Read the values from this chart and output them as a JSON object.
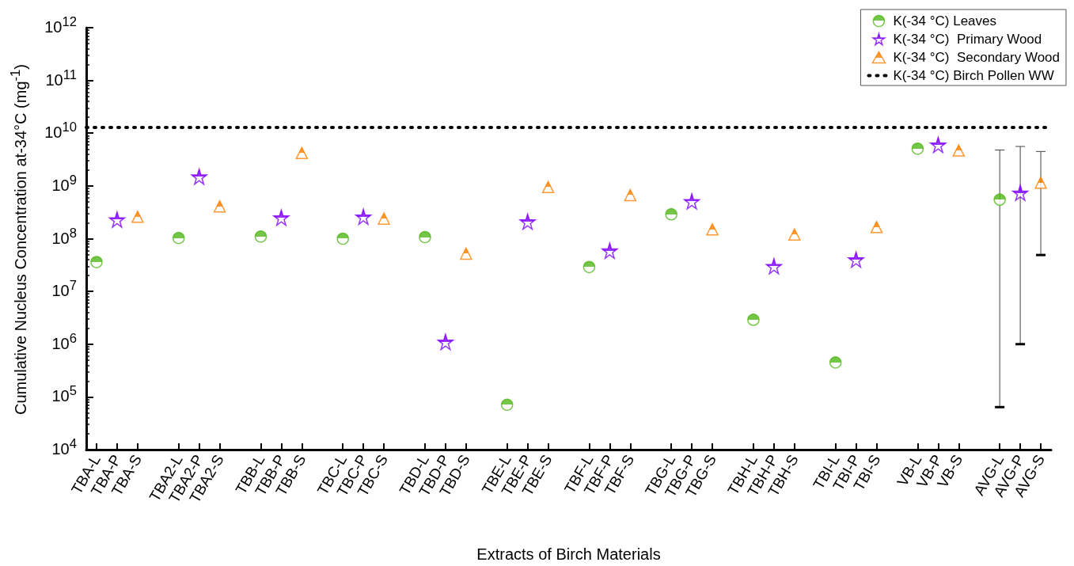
{
  "chart_data": {
    "type": "scatter",
    "xlabel": "Extracts of Birch Materials",
    "ylabel": "Cumulative Nucleus Concentration at-34°C (mg$^{-1}$)",
    "categories": [
      "TBA-L",
      "TBA-P",
      "TBA-S",
      null,
      "TBA2-L",
      "TBA2-P",
      "TBA2-S",
      null,
      "TBB-L",
      "TBB-P",
      "TBB-S",
      null,
      "TBC-L",
      "TBC-P",
      "TBC-S",
      null,
      "TBD-L",
      "TBD-P",
      "TBD-S",
      null,
      "TBE-L",
      "TBE-P",
      "TBE-S",
      null,
      "TBF-L",
      "TBF-P",
      "TBF-S",
      null,
      "TBG-L",
      "TBG-P",
      "TBG-S",
      null,
      "TBH-L",
      "TBH-P",
      "TBH-S",
      null,
      "TBI-L",
      "TBI-P",
      "TBI-S",
      null,
      "VB-L",
      "VB-P",
      "VB-S",
      null,
      "AVG-L",
      "AVG-P",
      "AVG-S"
    ],
    "series": [
      {
        "name": "K(-34 °C) Leaves",
        "color": "#52b81a",
        "marker": "circle",
        "values": [
          36000000.0,
          null,
          null,
          null,
          103000000.0,
          null,
          null,
          null,
          110000000.0,
          null,
          null,
          null,
          100000000.0,
          null,
          null,
          null,
          107000000.0,
          null,
          null,
          null,
          71000.0,
          null,
          null,
          null,
          29000000.0,
          null,
          null,
          null,
          290000000.0,
          null,
          null,
          null,
          2900000.0,
          null,
          null,
          null,
          450000.0,
          null,
          null,
          null,
          5100000000.0,
          null,
          null,
          null,
          550000000.0,
          null,
          null
        ],
        "errors": [
          null,
          null,
          null,
          null,
          null,
          null,
          null,
          null,
          null,
          null,
          null,
          null,
          null,
          null,
          null,
          null,
          null,
          null,
          null,
          null,
          null,
          null,
          null,
          null,
          null,
          null,
          null,
          null,
          null,
          null,
          null,
          null,
          null,
          null,
          null,
          null,
          null,
          null,
          null,
          null,
          null,
          null,
          null,
          null,
          [
            64000.0,
            4800000000.0
          ],
          null,
          null
        ]
      },
      {
        "name": "K(-34 °C)  Primary Wood",
        "color": "#7f00ff",
        "marker": "star",
        "values": [
          null,
          230000000.0,
          null,
          null,
          null,
          1500000000.0,
          null,
          null,
          null,
          250000000.0,
          null,
          null,
          null,
          260000000.0,
          null,
          null,
          null,
          1100000.0,
          null,
          null,
          null,
          210000000.0,
          null,
          null,
          null,
          59000000.0,
          null,
          null,
          null,
          510000000.0,
          null,
          null,
          null,
          30000000.0,
          null,
          null,
          null,
          40000000.0,
          null,
          null,
          null,
          6000000000.0,
          null,
          null,
          null,
          740000000.0,
          null
        ],
        "errors": [
          null,
          null,
          null,
          null,
          null,
          null,
          null,
          null,
          null,
          null,
          null,
          null,
          null,
          null,
          null,
          null,
          null,
          null,
          null,
          null,
          null,
          null,
          null,
          null,
          null,
          null,
          null,
          null,
          null,
          null,
          null,
          null,
          null,
          null,
          null,
          null,
          null,
          null,
          null,
          null,
          null,
          null,
          null,
          null,
          null,
          [
            1000000.0,
            5600000000.0
          ],
          null
        ]
      },
      {
        "name": "K(-34 °C)  Secondary Wood",
        "color": "#ff7f00",
        "marker": "triangle",
        "values": [
          null,
          null,
          260000000.0,
          null,
          null,
          null,
          410000000.0,
          null,
          null,
          null,
          4200000000.0,
          null,
          null,
          null,
          240000000.0,
          null,
          null,
          null,
          52000000.0,
          null,
          null,
          null,
          950000000.0,
          null,
          null,
          null,
          670000000.0,
          null,
          null,
          null,
          150000000.0,
          null,
          null,
          null,
          120000000.0,
          null,
          null,
          null,
          166000000.0,
          null,
          null,
          null,
          4700000000.0,
          null,
          null,
          null,
          1150000000.0
        ],
        "errors": [
          null,
          null,
          null,
          null,
          null,
          null,
          null,
          null,
          null,
          null,
          null,
          null,
          null,
          null,
          null,
          null,
          null,
          null,
          null,
          null,
          null,
          null,
          null,
          null,
          null,
          null,
          null,
          null,
          null,
          null,
          null,
          null,
          null,
          null,
          null,
          null,
          null,
          null,
          null,
          null,
          null,
          null,
          null,
          null,
          null,
          null,
          [
            49000000.0,
            4500000000.0
          ]
        ]
      }
    ],
    "ref_lines": [
      {
        "axis": "y",
        "value": 13000000000.0,
        "label": "K(-34 °C) Birch Pollen WW",
        "color": "#000000",
        "line_style": "dotted"
      }
    ],
    "log": "y",
    "ylim": [
      10000.0,
      1000000000000.0
    ],
    "yticks": [
      {
        "value": 10000.0,
        "label": "10$^{4}$"
      },
      {
        "value": 100000.0,
        "label": "10$^{5}$"
      },
      {
        "value": 1000000.0,
        "label": "10$^{6}$"
      },
      {
        "value": 10000000.0,
        "label": "10$^{7}$"
      },
      {
        "value": 100000000.0,
        "label": "10$^{8}$"
      },
      {
        "value": 1000000000.0,
        "label": "10$^{9}$"
      },
      {
        "value": 10000000000.0,
        "label": "10$^{10}$"
      },
      {
        "value": 100000000000.0,
        "label": "10$^{11}$"
      },
      {
        "value": 1000000000000.0,
        "label": "10$^{12}$"
      }
    ],
    "grid": false,
    "legend": "top right"
  }
}
